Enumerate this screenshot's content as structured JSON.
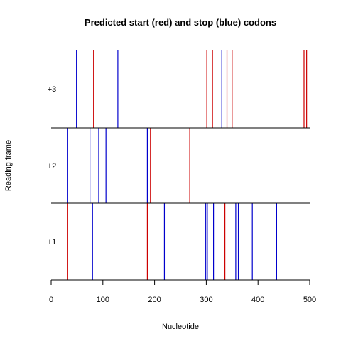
{
  "chart_data": {
    "type": "event-plot",
    "title": "Predicted start (red) and stop (blue) codons",
    "xlabel": "Nucleotide",
    "ylabel": "Reading frame",
    "xlim": [
      0,
      500
    ],
    "x_ticks": [
      0,
      100,
      200,
      300,
      400,
      500
    ],
    "frames": [
      "+1",
      "+2",
      "+3"
    ],
    "colors": {
      "start": "#cc0000",
      "stop": "#0000cc"
    },
    "series": [
      {
        "name": "start",
        "frame": "+1",
        "positions": [
          32,
          186,
          336
        ]
      },
      {
        "name": "stop",
        "frame": "+1",
        "positions": [
          80,
          219,
          299,
          302,
          314,
          357,
          362,
          389,
          436
        ]
      },
      {
        "name": "start",
        "frame": "+2",
        "positions": [
          192,
          268
        ]
      },
      {
        "name": "stop",
        "frame": "+2",
        "positions": [
          32,
          75,
          92,
          106,
          186
        ]
      },
      {
        "name": "start",
        "frame": "+3",
        "positions": [
          82,
          301,
          312,
          340,
          350,
          489,
          494
        ]
      },
      {
        "name": "stop",
        "frame": "+3",
        "positions": [
          49,
          129,
          330
        ]
      }
    ]
  }
}
